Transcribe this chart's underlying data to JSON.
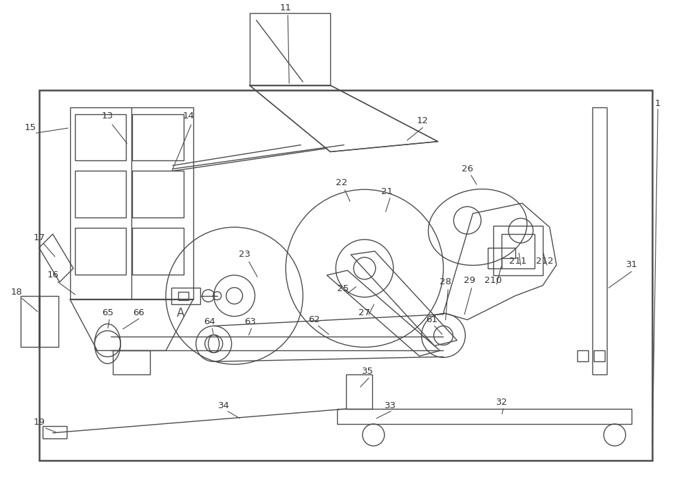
{
  "bg_color": "#ffffff",
  "line_color": "#4a4a4a",
  "lw": 1.0,
  "fig_width": 10.0,
  "fig_height": 7.09
}
